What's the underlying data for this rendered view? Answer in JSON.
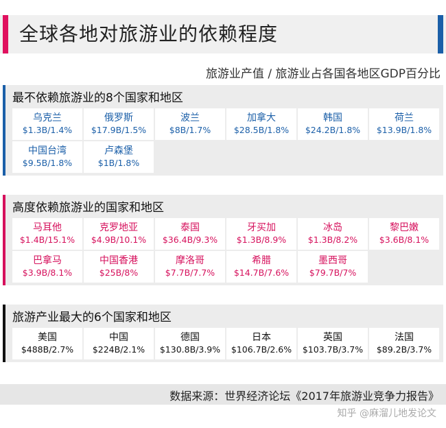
{
  "header": {
    "title": "全球各地对旅游业的依赖程度",
    "subtitle": "旅游业产值 / 旅游业占各国各地区GDP百分比",
    "accent_left": "#e0115f",
    "accent_right": "#1b5fa8"
  },
  "sections": [
    {
      "title": "最不依赖旅游业的8个国家和地区",
      "color": "#1b5fa8",
      "items": [
        {
          "name": "乌克兰",
          "value": "$1.3B/1.4%"
        },
        {
          "name": "俄罗斯",
          "value": "$17.9B/1.5%"
        },
        {
          "name": "波兰",
          "value": "$8B/1.7%"
        },
        {
          "name": "加拿大",
          "value": "$28.5B/1.8%"
        },
        {
          "name": "韩国",
          "value": "$24.2B/1.8%"
        },
        {
          "name": "荷兰",
          "value": "$13.9B/1.8%"
        },
        {
          "name": "中国台湾",
          "value": "$9.5B/1.8%"
        },
        {
          "name": "卢森堡",
          "value": "$1B/1.8%"
        }
      ]
    },
    {
      "title": "高度依赖旅游业的国家和地区",
      "color": "#d6105c",
      "items": [
        {
          "name": "马耳他",
          "value": "$1.4B/15.1%"
        },
        {
          "name": "克罗地亚",
          "value": "$4.9B/10.1%"
        },
        {
          "name": "泰国",
          "value": "$36.4B/9.3%"
        },
        {
          "name": "牙买加",
          "value": "$1.3B/8.9%"
        },
        {
          "name": "冰岛",
          "value": "$1.3B/8.2%"
        },
        {
          "name": "黎巴嫩",
          "value": "$3.6B/8.1%"
        },
        {
          "name": "巴拿马",
          "value": "$3.9B/8.1%"
        },
        {
          "name": "中国香港",
          "value": "$25B/8%"
        },
        {
          "name": "摩洛哥",
          "value": "$7.7B/7.7%"
        },
        {
          "name": "希腊",
          "value": "$14.7B/7.6%"
        },
        {
          "name": "墨西哥",
          "value": "$79.7B/7%"
        }
      ]
    },
    {
      "title": "旅游产业最大的6个国家和地区",
      "color": "#111111",
      "items": [
        {
          "name": "美国",
          "value": "$488B/2.7%"
        },
        {
          "name": "中国",
          "value": "$224B/2.1%"
        },
        {
          "name": "德国",
          "value": "$130.8B/3.9%"
        },
        {
          "name": "日本",
          "value": "$106.7B/2.6%"
        },
        {
          "name": "英国",
          "value": "$103.7B/3.7%"
        },
        {
          "name": "法国",
          "value": "$89.2B/3.7%"
        }
      ]
    }
  ],
  "footer": {
    "source": "数据来源：世界经济论坛《2017年旅游业竞争力报告》",
    "watermark": "知乎 @麻溜儿地发论文"
  }
}
